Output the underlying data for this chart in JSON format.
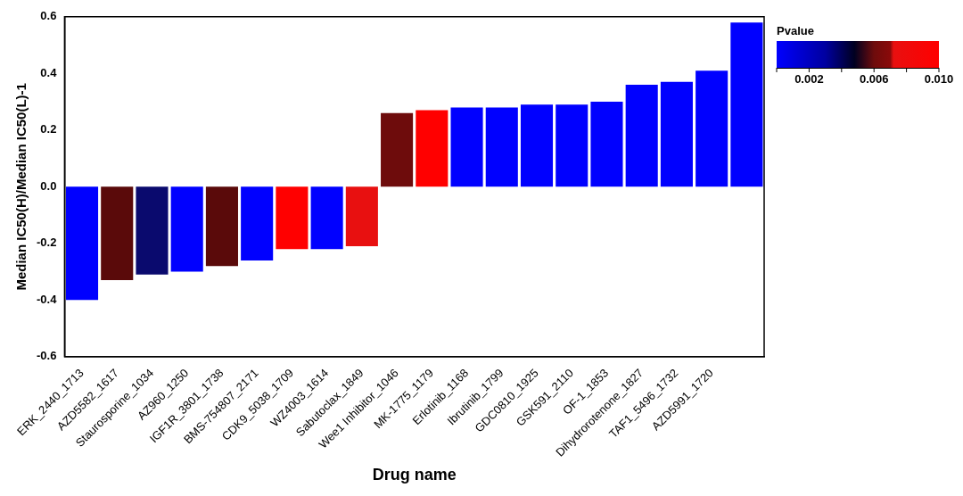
{
  "chart_data": {
    "type": "bar",
    "xlabel": "Drug name",
    "ylabel": "Median IC50(H)/Median IC50(L)-1",
    "clabel": "Pvalue",
    "categories": [
      "ERK_2440_1713",
      "AZD5582_1617",
      "Staurosporine_1034",
      "AZ960_1250",
      "IGF1R_3801_1738",
      "BMS-754807_2171",
      "CDK9_5038_1709",
      "WZ4003_1614",
      "Sabutoclax_1849",
      "Wee1 Inhibitor_1046",
      "MK-1775_1179",
      "Erlotinib_1168",
      "Ibrutinib_1799",
      "GDC0810_1925",
      "GSK591_2110",
      "OF-1_1853",
      "Dihydrorotenone_1827",
      "TAF1_5496_1732",
      "AZD5991_1720",
      null
    ],
    "values": [
      -0.4,
      -0.33,
      -0.31,
      -0.3,
      -0.28,
      -0.26,
      -0.22,
      -0.22,
      -0.21,
      0.26,
      0.27,
      0.28,
      0.28,
      0.29,
      0.29,
      0.3,
      0.36,
      0.37,
      0.41,
      0.58
    ],
    "colors": [
      "#0000ff",
      "#5a0a0a",
      "#0a0a6e",
      "#0000ff",
      "#5a0a0a",
      "#0000ff",
      "#ff0000",
      "#0000ff",
      "#e81010",
      "#6e0c0c",
      "#ff0000",
      "#0000ff",
      "#0000ff",
      "#0000ff",
      "#0000ff",
      "#0000ff",
      "#0000ff",
      "#0000ff",
      "#0000ff",
      "#0000ff"
    ],
    "ylim": [
      -0.6,
      0.6
    ],
    "yticks": [
      -0.6,
      -0.4,
      -0.2,
      {
        "value": 0,
        "label": "0.0"
      },
      0.2,
      0.4,
      0.6
    ],
    "clim": [
      0,
      0.01
    ],
    "cticks": [
      {
        "value": 0,
        "label": null
      },
      0.002,
      {
        "value": 0.004,
        "label": null
      },
      0.006,
      {
        "value": 0.008,
        "label": null
      },
      {
        "value": 0.01,
        "label": "0.010"
      }
    ],
    "grid": false,
    "legend": false
  }
}
